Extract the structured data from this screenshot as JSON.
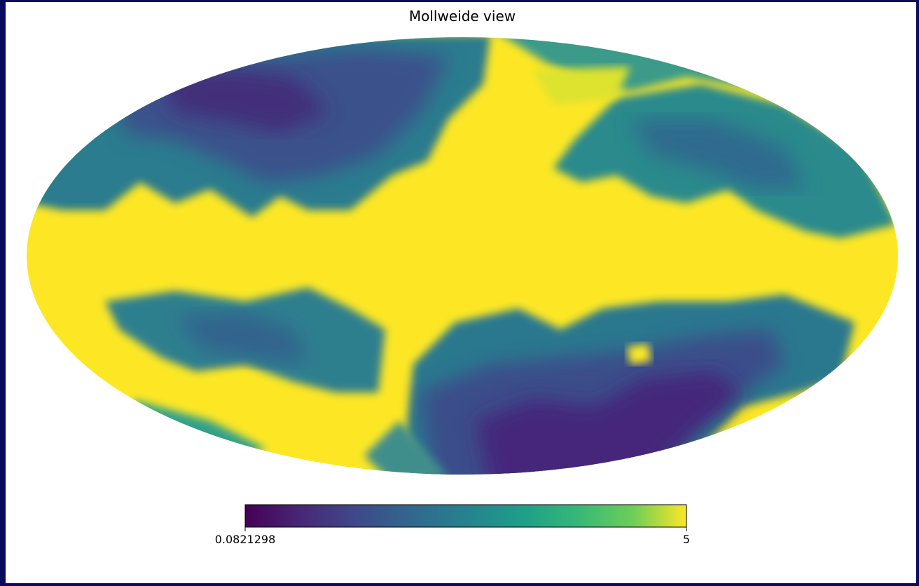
{
  "title": "Mollweide view",
  "colorbar": {
    "lim": [
      0.0821298,
      5
    ],
    "ticks": [
      0.0821298,
      5
    ]
  }
}
